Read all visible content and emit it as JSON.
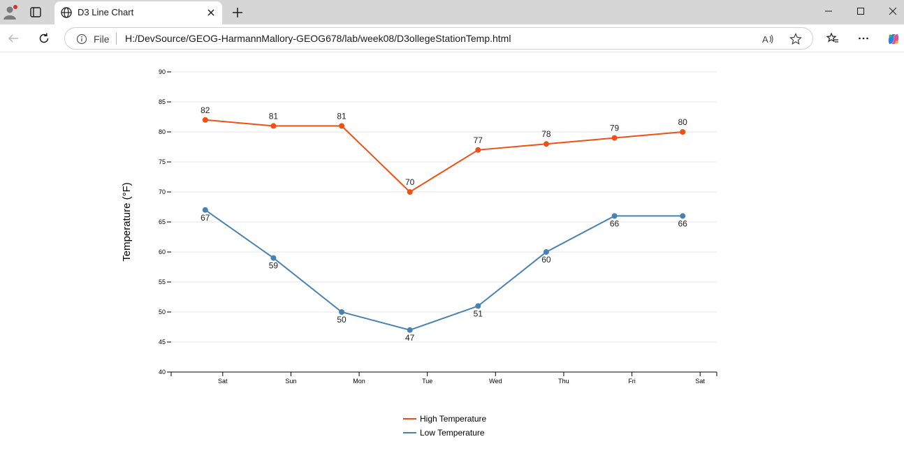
{
  "browser": {
    "tab": {
      "title": "D3 Line Chart",
      "icon": "globe-icon"
    },
    "address": {
      "site_label": "File",
      "url": "H:/DevSource/GEOG-HarmannMallory-GEOG678/lab/week08/D3ollegeStationTemp.html"
    },
    "icons": [
      "profile-icon",
      "tab-actions-icon",
      "close-icon",
      "plus-icon",
      "minimize-icon",
      "maximize-icon",
      "close-window-icon",
      "back-arrow-icon",
      "refresh-icon",
      "info-icon",
      "read-aloud-icon",
      "favorite-star-icon",
      "favorites-icon",
      "more-icon",
      "copilot-icon"
    ],
    "colors": {
      "titlebar": "#d6d6d6",
      "profile_dot": "#d13438"
    }
  },
  "chart_data": {
    "type": "line",
    "categories": [
      "Sat",
      "Sun",
      "Mon",
      "Tue",
      "Wed",
      "Thu",
      "Fri",
      "Sat"
    ],
    "series": [
      {
        "name": "High Temperature",
        "color": "#f05014",
        "values": [
          82,
          81,
          81,
          70,
          77,
          78,
          79,
          80
        ],
        "label_position": "above"
      },
      {
        "name": "Low Temperature",
        "color": "#4682b4",
        "values": [
          67,
          59,
          50,
          47,
          51,
          60,
          66,
          66
        ],
        "label_position": "below"
      }
    ],
    "ylabel": "Temperature (°F)",
    "xlabel": "",
    "title": "",
    "ylim": [
      40,
      90
    ],
    "yticks": [
      40,
      45,
      50,
      55,
      60,
      65,
      70,
      75,
      80,
      85,
      90
    ],
    "grid": true,
    "legend": "bottom-center",
    "data_labels": true
  }
}
